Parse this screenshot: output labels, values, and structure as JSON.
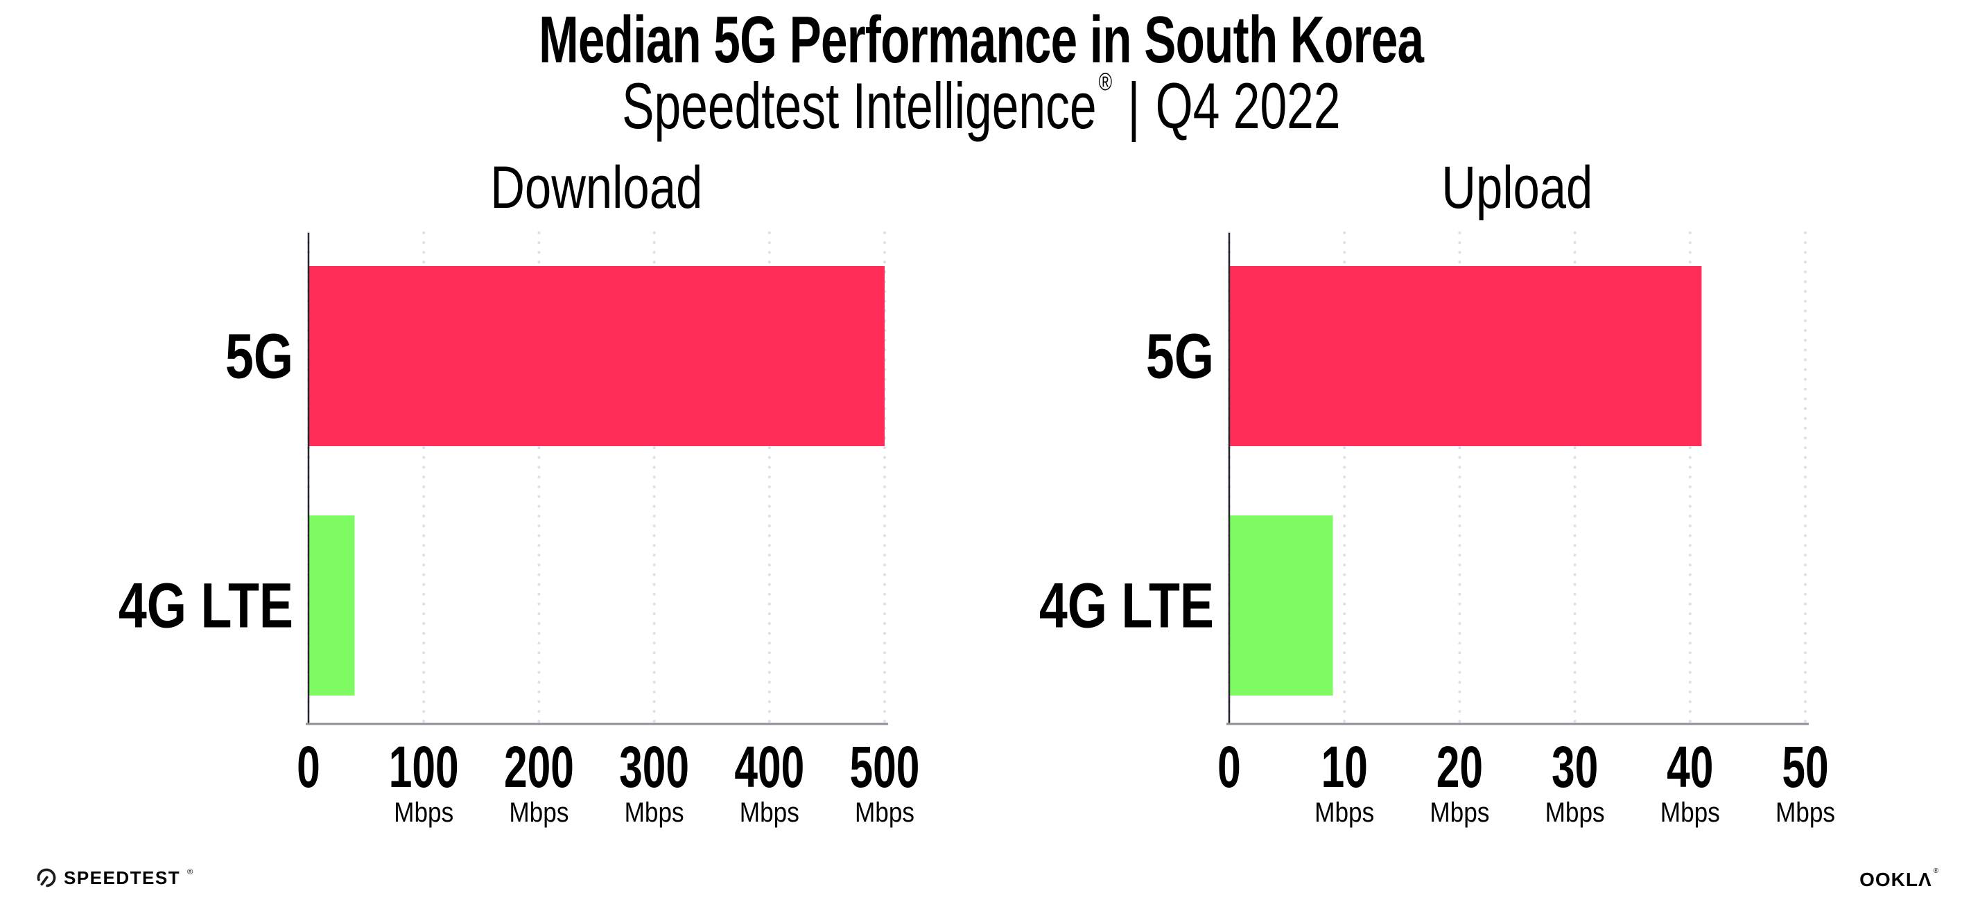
{
  "header": {
    "title": "Median 5G Performance in South Korea",
    "subtitle": {
      "brand": "Speedtest Intelligence",
      "registered_mark": "®",
      "divider": "|",
      "period": "Q4 2022"
    }
  },
  "colors": {
    "bar_5g": "#FF2D58",
    "bar_4g_lte": "#7EFB63",
    "gridline": "#DDE0EB",
    "axis_line": "#26262E",
    "baseline": "#8F8F97",
    "text": "#000000",
    "background": "#FFFFFF"
  },
  "chart_data": [
    {
      "type": "bar",
      "orientation": "horizontal",
      "title": "Download",
      "categories": [
        "5G",
        "4G LTE"
      ],
      "values": [
        500,
        40
      ],
      "unit": "Mbps",
      "xlim": [
        0,
        500
      ],
      "xticks": [
        0,
        100,
        200,
        300,
        400,
        500
      ],
      "bar_colors": [
        "#FF2D58",
        "#7EFB63"
      ],
      "grid": "vertical-dotted",
      "legend": "none"
    },
    {
      "type": "bar",
      "orientation": "horizontal",
      "title": "Upload",
      "categories": [
        "5G",
        "4G LTE"
      ],
      "values": [
        41,
        9
      ],
      "unit": "Mbps",
      "xlim": [
        0,
        50
      ],
      "xticks": [
        0,
        10,
        20,
        30,
        40,
        50
      ],
      "bar_colors": [
        "#FF2D58",
        "#7EFB63"
      ],
      "grid": "vertical-dotted",
      "legend": "none"
    }
  ],
  "footer": {
    "speedtest": {
      "icon": "speedtest-gauge-icon",
      "label": "SPEEDTEST",
      "mark": "®"
    },
    "ookla": {
      "label": "OOKLA",
      "mark": "®"
    }
  }
}
